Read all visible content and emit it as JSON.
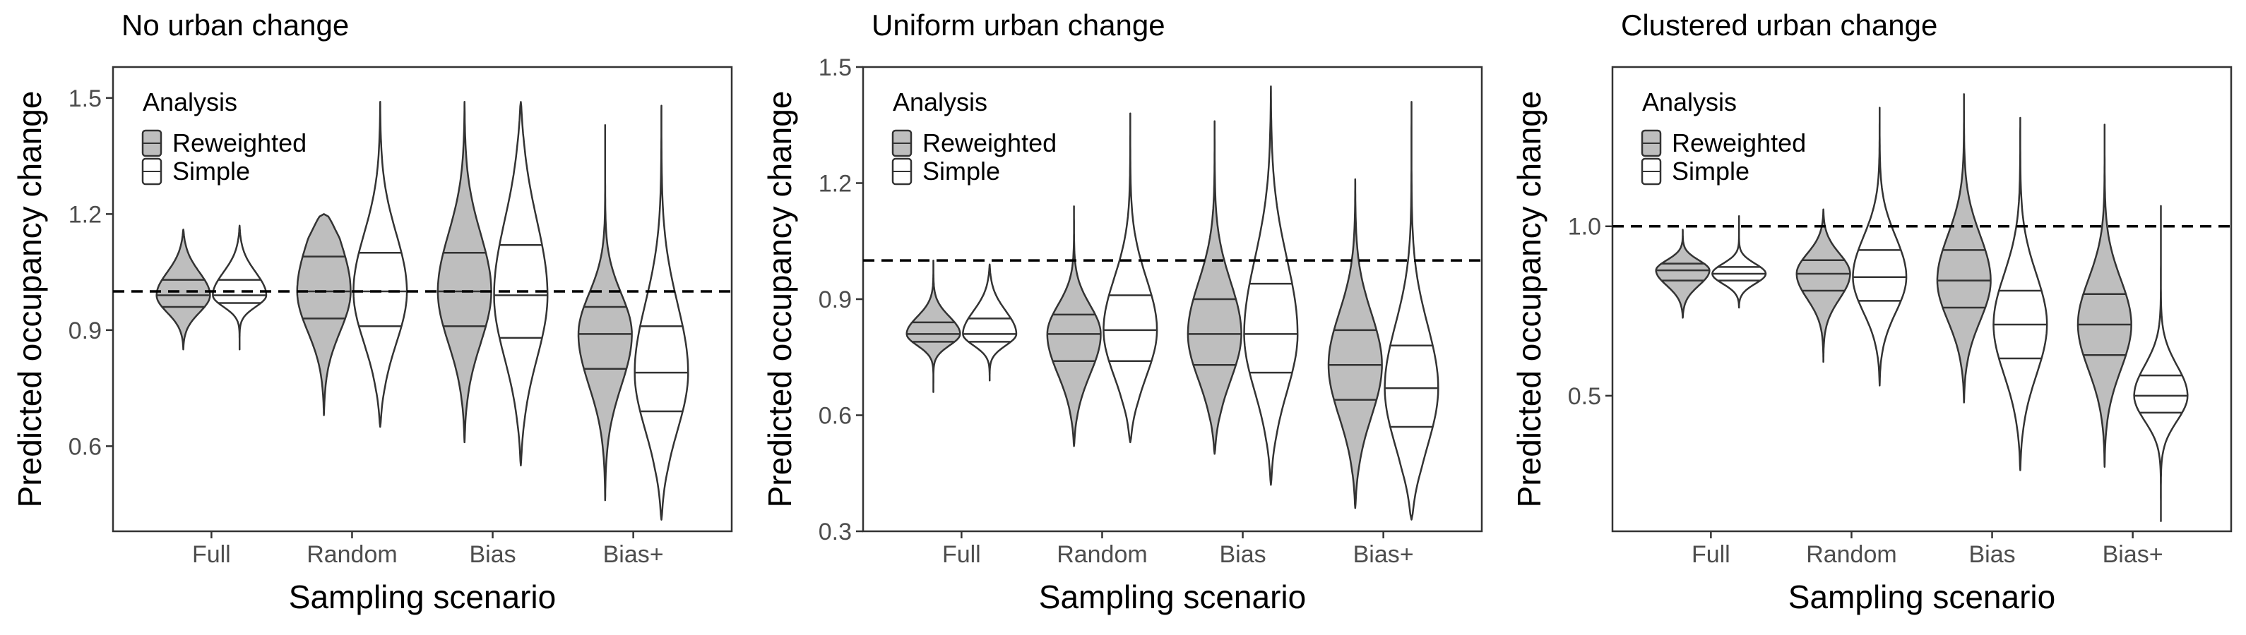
{
  "chart_data": [
    {
      "type": "violin",
      "title": "No urban change",
      "xlabel": "Sampling scenario",
      "ylabel": "Predicted occupancy change",
      "ylim": [
        0.38,
        1.58
      ],
      "yticks": [
        0.6,
        0.9,
        1.2,
        1.5
      ],
      "ytick_labels": [
        "0.6",
        "0.9",
        "1.2",
        "1.5"
      ],
      "reference_line": 1.0,
      "categories": [
        "Full",
        "Random",
        "Bias",
        "Bias+"
      ],
      "legend": {
        "title": "Analysis",
        "placement": "top-left",
        "entries": [
          "Reweighted",
          "Simple"
        ]
      },
      "colors": {
        "Reweighted": "#bebebe",
        "Simple": "#ffffff",
        "outline": "#333333"
      },
      "series": [
        {
          "name": "Reweighted",
          "violins": [
            {
              "min": 0.85,
              "max": 1.16,
              "q25": 0.96,
              "median": 0.99,
              "q75": 1.03
            },
            {
              "min": 0.68,
              "max": 1.2,
              "q25": 0.93,
              "median": 1.0,
              "q75": 1.09
            },
            {
              "min": 0.61,
              "max": 1.49,
              "q25": 0.91,
              "median": 1.0,
              "q75": 1.1
            },
            {
              "min": 0.46,
              "max": 1.43,
              "q25": 0.8,
              "median": 0.89,
              "q75": 0.96
            }
          ]
        },
        {
          "name": "Simple",
          "violins": [
            {
              "min": 0.85,
              "max": 1.17,
              "q25": 0.97,
              "median": 0.99,
              "q75": 1.03
            },
            {
              "min": 0.65,
              "max": 1.49,
              "q25": 0.91,
              "median": 1.0,
              "q75": 1.1
            },
            {
              "min": 0.55,
              "max": 1.49,
              "q25": 0.88,
              "median": 0.99,
              "q75": 1.12
            },
            {
              "min": 0.41,
              "max": 1.48,
              "q25": 0.69,
              "median": 0.79,
              "q75": 0.91
            }
          ]
        }
      ]
    },
    {
      "type": "violin",
      "title": "Uniform urban change",
      "xlabel": "Sampling scenario",
      "ylabel": "Predicted occupancy change",
      "ylim": [
        0.3,
        1.5
      ],
      "yticks": [
        0.3,
        0.6,
        0.9,
        1.2,
        1.5
      ],
      "ytick_labels": [
        "0.3",
        "0.6",
        "0.9",
        "1.2",
        "1.5"
      ],
      "reference_line": 1.0,
      "categories": [
        "Full",
        "Random",
        "Bias",
        "Bias+"
      ],
      "legend": {
        "title": "Analysis",
        "placement": "top-left",
        "entries": [
          "Reweighted",
          "Simple"
        ]
      },
      "colors": {
        "Reweighted": "#bebebe",
        "Simple": "#ffffff",
        "outline": "#333333"
      },
      "series": [
        {
          "name": "Reweighted",
          "violins": [
            {
              "min": 0.66,
              "max": 1.0,
              "q25": 0.79,
              "median": 0.81,
              "q75": 0.84
            },
            {
              "min": 0.52,
              "max": 1.14,
              "q25": 0.74,
              "median": 0.81,
              "q75": 0.86
            },
            {
              "min": 0.5,
              "max": 1.36,
              "q25": 0.73,
              "median": 0.81,
              "q75": 0.9
            },
            {
              "min": 0.36,
              "max": 1.21,
              "q25": 0.64,
              "median": 0.73,
              "q75": 0.82
            }
          ]
        },
        {
          "name": "Simple",
          "violins": [
            {
              "min": 0.69,
              "max": 0.99,
              "q25": 0.79,
              "median": 0.81,
              "q75": 0.85
            },
            {
              "min": 0.53,
              "max": 1.38,
              "q25": 0.74,
              "median": 0.82,
              "q75": 0.91
            },
            {
              "min": 0.42,
              "max": 1.45,
              "q25": 0.71,
              "median": 0.81,
              "q75": 0.94
            },
            {
              "min": 0.33,
              "max": 1.41,
              "q25": 0.57,
              "median": 0.67,
              "q75": 0.78
            }
          ]
        }
      ]
    },
    {
      "type": "violin",
      "title": "Clustered urban change",
      "xlabel": "Sampling scenario",
      "ylabel": "Predicted occupancy change",
      "ylim": [
        0.1,
        1.47
      ],
      "yticks": [
        0.5,
        1.0
      ],
      "ytick_labels": [
        "0.5",
        "1.0"
      ],
      "reference_line": 1.0,
      "categories": [
        "Full",
        "Random",
        "Bias",
        "Bias+"
      ],
      "legend": {
        "title": "Analysis",
        "placement": "top-left",
        "entries": [
          "Reweighted",
          "Simple"
        ]
      },
      "colors": {
        "Reweighted": "#bebebe",
        "Simple": "#ffffff",
        "outline": "#333333"
      },
      "series": [
        {
          "name": "Reweighted",
          "violins": [
            {
              "min": 0.73,
              "max": 0.99,
              "q25": 0.84,
              "median": 0.87,
              "q75": 0.89
            },
            {
              "min": 0.6,
              "max": 1.05,
              "q25": 0.81,
              "median": 0.86,
              "q75": 0.9
            },
            {
              "min": 0.48,
              "max": 1.39,
              "q25": 0.76,
              "median": 0.84,
              "q75": 0.93
            },
            {
              "min": 0.29,
              "max": 1.3,
              "q25": 0.62,
              "median": 0.71,
              "q75": 0.8
            }
          ]
        },
        {
          "name": "Simple",
          "violins": [
            {
              "min": 0.76,
              "max": 1.03,
              "q25": 0.84,
              "median": 0.86,
              "q75": 0.88
            },
            {
              "min": 0.53,
              "max": 1.35,
              "q25": 0.78,
              "median": 0.85,
              "q75": 0.93
            },
            {
              "min": 0.28,
              "max": 1.32,
              "q25": 0.61,
              "median": 0.71,
              "q75": 0.81
            },
            {
              "min": 0.13,
              "max": 1.06,
              "q25": 0.45,
              "median": 0.5,
              "q75": 0.56
            }
          ]
        }
      ]
    }
  ]
}
